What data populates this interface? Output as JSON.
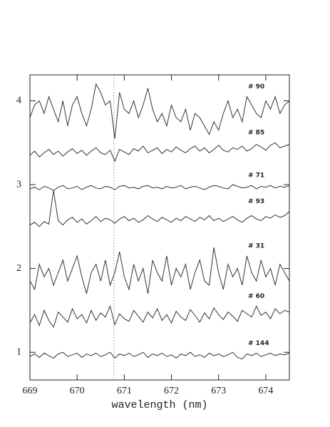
{
  "chart_data": {
    "type": "line",
    "xlabel": "wavelength (nm)",
    "x": [
      669.0,
      669.1,
      669.2,
      669.3,
      669.4,
      669.5,
      669.6,
      669.7,
      669.8,
      669.9,
      670.0,
      670.1,
      670.2,
      670.3,
      670.4,
      670.5,
      670.6,
      670.7,
      670.8,
      670.9,
      671.0,
      671.1,
      671.2,
      671.3,
      671.4,
      671.5,
      671.6,
      671.7,
      671.8,
      671.9,
      672.0,
      672.1,
      672.2,
      672.3,
      672.4,
      672.5,
      672.6,
      672.7,
      672.8,
      672.9,
      673.0,
      673.1,
      673.2,
      673.3,
      673.4,
      673.5,
      673.6,
      673.7,
      673.8,
      673.9,
      674.0,
      674.1,
      674.2,
      674.3,
      674.4,
      674.5
    ],
    "series": [
      {
        "name": "# 90",
        "color": "#333333",
        "values": [
          3.8,
          3.95,
          4.0,
          3.85,
          4.05,
          3.9,
          3.75,
          4.0,
          3.7,
          3.95,
          4.05,
          3.85,
          3.7,
          3.9,
          4.2,
          4.1,
          3.95,
          4.0,
          3.55,
          4.1,
          3.9,
          3.85,
          4.0,
          3.8,
          3.95,
          4.15,
          3.9,
          3.75,
          3.85,
          3.7,
          3.95,
          3.8,
          3.75,
          3.9,
          3.65,
          3.85,
          3.8,
          3.7,
          3.6,
          3.75,
          3.65,
          3.85,
          4.0,
          3.8,
          3.9,
          3.75,
          4.05,
          3.95,
          3.85,
          3.8,
          4.0,
          3.9,
          4.05,
          3.85,
          3.95,
          4.0
        ]
      },
      {
        "name": "# 85",
        "color": "#333333",
        "values": [
          3.35,
          3.4,
          3.33,
          3.38,
          3.42,
          3.36,
          3.4,
          3.34,
          3.39,
          3.43,
          3.37,
          3.41,
          3.35,
          3.4,
          3.44,
          3.38,
          3.36,
          3.41,
          3.28,
          3.42,
          3.39,
          3.36,
          3.43,
          3.4,
          3.46,
          3.38,
          3.41,
          3.44,
          3.37,
          3.42,
          3.39,
          3.45,
          3.41,
          3.38,
          3.43,
          3.46,
          3.4,
          3.44,
          3.38,
          3.42,
          3.47,
          3.41,
          3.39,
          3.44,
          3.42,
          3.46,
          3.4,
          3.43,
          3.48,
          3.45,
          3.41,
          3.47,
          3.5,
          3.44,
          3.46,
          3.48
        ]
      },
      {
        "name": "# 71",
        "color": "#333333",
        "values": [
          2.95,
          2.97,
          2.94,
          2.98,
          2.96,
          2.93,
          2.97,
          2.99,
          2.95,
          2.96,
          2.98,
          2.94,
          2.97,
          2.99,
          2.96,
          2.95,
          2.98,
          2.97,
          2.94,
          2.98,
          2.99,
          2.96,
          2.97,
          2.95,
          2.98,
          2.99,
          2.96,
          2.97,
          2.95,
          2.98,
          2.96,
          2.97,
          2.99,
          2.95,
          2.97,
          2.98,
          2.96,
          2.94,
          2.97,
          2.99,
          2.98,
          2.96,
          2.95,
          3.0,
          2.98,
          2.96,
          2.97,
          2.99,
          2.95,
          2.98,
          2.97,
          2.99,
          2.96,
          2.98,
          2.97,
          2.99
        ]
      },
      {
        "name": "# 93",
        "color": "#333333",
        "values": [
          2.52,
          2.55,
          2.5,
          2.56,
          2.53,
          2.93,
          2.57,
          2.52,
          2.58,
          2.61,
          2.55,
          2.59,
          2.53,
          2.57,
          2.62,
          2.56,
          2.6,
          2.58,
          2.54,
          2.59,
          2.62,
          2.57,
          2.6,
          2.55,
          2.58,
          2.63,
          2.59,
          2.56,
          2.61,
          2.58,
          2.55,
          2.6,
          2.57,
          2.62,
          2.59,
          2.56,
          2.61,
          2.58,
          2.63,
          2.57,
          2.6,
          2.56,
          2.59,
          2.62,
          2.58,
          2.55,
          2.6,
          2.63,
          2.59,
          2.57,
          2.62,
          2.6,
          2.64,
          2.61,
          2.63,
          2.68
        ]
      },
      {
        "name": "# 31",
        "color": "#333333",
        "values": [
          1.85,
          1.75,
          2.05,
          1.9,
          2.0,
          1.8,
          1.95,
          2.1,
          1.85,
          2.0,
          2.15,
          1.9,
          1.7,
          1.95,
          2.05,
          1.85,
          2.1,
          1.8,
          1.95,
          2.2,
          1.9,
          1.75,
          2.05,
          1.85,
          2.0,
          1.7,
          2.1,
          1.95,
          1.85,
          2.15,
          1.8,
          2.0,
          1.9,
          2.05,
          1.75,
          1.95,
          2.1,
          1.85,
          1.8,
          2.25,
          1.95,
          1.75,
          2.05,
          1.9,
          2.0,
          1.8,
          2.15,
          1.95,
          1.85,
          2.1,
          1.9,
          2.0,
          1.8,
          2.05,
          1.95,
          1.85
        ]
      },
      {
        "name": "# 60",
        "color": "#333333",
        "values": [
          1.35,
          1.45,
          1.32,
          1.5,
          1.38,
          1.3,
          1.48,
          1.42,
          1.36,
          1.52,
          1.4,
          1.45,
          1.35,
          1.5,
          1.38,
          1.47,
          1.42,
          1.55,
          1.33,
          1.46,
          1.4,
          1.37,
          1.5,
          1.43,
          1.36,
          1.48,
          1.41,
          1.52,
          1.38,
          1.45,
          1.35,
          1.49,
          1.42,
          1.38,
          1.51,
          1.44,
          1.36,
          1.47,
          1.4,
          1.53,
          1.45,
          1.39,
          1.48,
          1.43,
          1.37,
          1.5,
          1.46,
          1.42,
          1.55,
          1.44,
          1.48,
          1.4,
          1.52,
          1.46,
          1.5,
          1.48
        ]
      },
      {
        "name": "# 144",
        "color": "#333333",
        "values": [
          0.95,
          0.98,
          0.94,
          0.99,
          0.96,
          0.93,
          0.98,
          1.0,
          0.95,
          0.97,
          0.99,
          0.94,
          0.98,
          0.96,
          0.99,
          0.95,
          0.97,
          1.0,
          0.93,
          0.98,
          0.96,
          0.99,
          0.95,
          0.97,
          1.0,
          0.94,
          0.98,
          0.96,
          0.99,
          0.95,
          0.97,
          0.93,
          0.98,
          0.96,
          1.0,
          0.95,
          0.97,
          0.94,
          0.99,
          0.96,
          0.98,
          0.95,
          0.97,
          1.0,
          0.94,
          0.92,
          0.98,
          0.96,
          0.99,
          0.95,
          0.97,
          0.99,
          0.96,
          0.98,
          0.97,
          0.99
        ]
      }
    ],
    "vline": 670.78,
    "xlim": [
      669,
      674.5
    ],
    "xticks": [
      669,
      670,
      671,
      672,
      673,
      674
    ],
    "ylim": [
      0.67,
      4.31
    ],
    "yticks": [
      1,
      2,
      3,
      4
    ]
  }
}
